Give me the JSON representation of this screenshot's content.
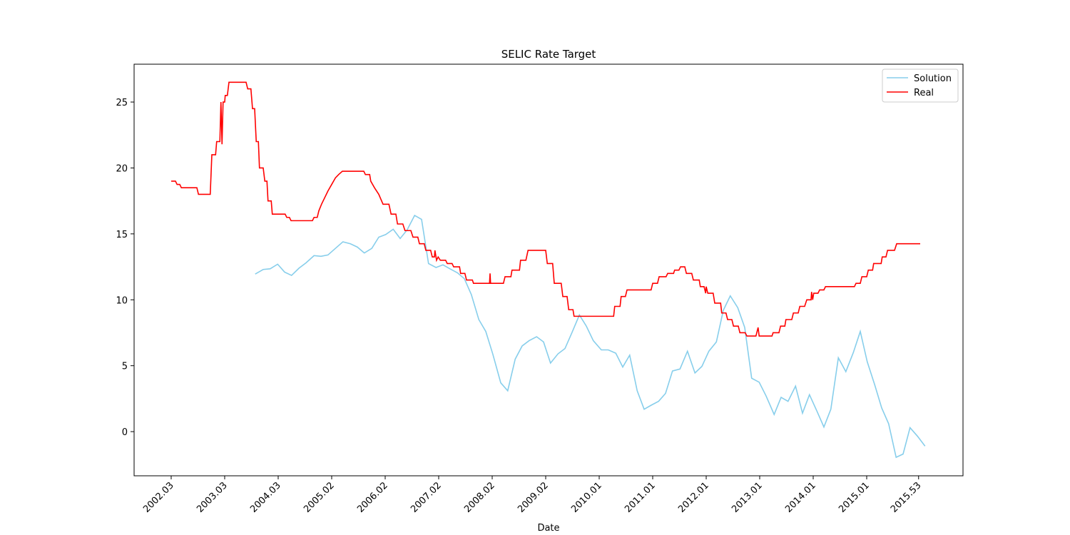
{
  "chart_data": {
    "type": "line",
    "title": "SELIC Rate Target",
    "x_label": "Date",
    "xlim": [
      2001.307,
      2016.8
    ],
    "ylim": [
      -3.35,
      27.87
    ],
    "xticks": [
      {
        "value": 2002,
        "label": "2002.03"
      },
      {
        "value": 2003,
        "label": "2003.03"
      },
      {
        "value": 2004,
        "label": "2004.03"
      },
      {
        "value": 2005,
        "label": "2005.02"
      },
      {
        "value": 2006,
        "label": "2006.02"
      },
      {
        "value": 2007,
        "label": "2007.02"
      },
      {
        "value": 2008,
        "label": "2008.02"
      },
      {
        "value": 2009,
        "label": "2009.02"
      },
      {
        "value": 2010,
        "label": "2010.01"
      },
      {
        "value": 2011,
        "label": "2011.01"
      },
      {
        "value": 2012,
        "label": "2012.01"
      },
      {
        "value": 2013,
        "label": "2013.01"
      },
      {
        "value": 2014,
        "label": "2014.01"
      },
      {
        "value": 2015,
        "label": "2015.01"
      },
      {
        "value": 2015.97,
        "label": "2015.53"
      }
    ],
    "yticks": [
      0,
      5,
      10,
      15,
      20,
      25
    ],
    "grid": false,
    "legend": "upper right",
    "series": [
      {
        "name": "Solution",
        "color": "#87ceeb",
        "x": [
          2003.57,
          2003.72,
          2003.85,
          2003.99,
          2004.12,
          2004.25,
          2004.39,
          2004.52,
          2004.67,
          2004.8,
          2004.93,
          2005.07,
          2005.21,
          2005.35,
          2005.48,
          2005.61,
          2005.75,
          2005.88,
          2006.01,
          2006.15,
          2006.28,
          2006.41,
          2006.55,
          2006.68,
          2006.81,
          2006.95,
          2007.08,
          2007.21,
          2007.35,
          2007.48,
          2007.61,
          2007.75,
          2007.88,
          2008.01,
          2008.16,
          2008.29,
          2008.43,
          2008.56,
          2008.69,
          2008.83,
          2008.96,
          2009.09,
          2009.23,
          2009.36,
          2009.49,
          2009.63,
          2009.76,
          2009.89,
          2010.04,
          2010.17,
          2010.31,
          2010.44,
          2010.57,
          2010.71,
          2010.84,
          2010.97,
          2011.11,
          2011.24,
          2011.37,
          2011.51,
          2011.65,
          2011.79,
          2011.92,
          2012.05,
          2012.19,
          2012.32,
          2012.45,
          2012.59,
          2012.72,
          2012.85,
          2012.99,
          2013.12,
          2013.27,
          2013.4,
          2013.53,
          2013.67,
          2013.8,
          2013.93,
          2014.07,
          2014.2,
          2014.33,
          2014.47,
          2014.61,
          2014.75,
          2014.88,
          2015.01,
          2015.15,
          2015.28,
          2015.41,
          2015.55,
          2015.68,
          2015.81,
          2015.95,
          2016.09
        ],
        "values": [
          11.95,
          12.3,
          12.35,
          12.7,
          12.1,
          11.85,
          12.4,
          12.8,
          13.35,
          13.3,
          13.4,
          13.9,
          14.4,
          14.25,
          14.0,
          13.55,
          13.9,
          14.75,
          14.95,
          15.35,
          14.65,
          15.3,
          16.4,
          16.1,
          12.75,
          12.45,
          12.65,
          12.35,
          12.05,
          11.6,
          10.4,
          8.5,
          7.6,
          5.9,
          3.7,
          3.1,
          5.5,
          6.5,
          6.9,
          7.2,
          6.8,
          5.2,
          5.9,
          6.3,
          7.5,
          8.85,
          8.0,
          6.9,
          6.2,
          6.2,
          5.95,
          4.9,
          5.8,
          3.1,
          1.7,
          2.0,
          2.3,
          2.9,
          4.6,
          4.75,
          6.1,
          4.45,
          4.95,
          6.1,
          6.8,
          9.2,
          10.3,
          9.4,
          7.9,
          4.05,
          3.75,
          2.7,
          1.3,
          2.6,
          2.3,
          3.45,
          1.4,
          2.8,
          1.55,
          0.35,
          1.7,
          5.6,
          4.55,
          6.0,
          7.6,
          5.3,
          3.55,
          1.8,
          0.6,
          -1.95,
          -1.7,
          0.3,
          -0.35,
          -1.1
        ]
      },
      {
        "name": "Real",
        "color": "#ff0000",
        "x": [
          2002.0,
          2002.08,
          2002.11,
          2002.16,
          2002.19,
          2002.48,
          2002.51,
          2002.73,
          2002.76,
          2002.83,
          2002.85,
          2002.91,
          2002.93,
          2002.95,
          2002.97,
          2003.0,
          2003.01,
          2003.05,
          2003.08,
          2003.4,
          2003.43,
          2003.49,
          2003.52,
          2003.56,
          2003.59,
          2003.63,
          2003.65,
          2003.72,
          2003.75,
          2003.79,
          2003.81,
          2003.87,
          2003.89,
          2004.13,
          2004.16,
          2004.21,
          2004.24,
          2004.64,
          2004.67,
          2004.73,
          2004.76,
          2004.81,
          2004.87,
          2004.93,
          2005.0,
          2005.07,
          2005.13,
          2005.2,
          2005.6,
          2005.63,
          2005.71,
          2005.73,
          2005.8,
          2005.88,
          2005.96,
          2006.07,
          2006.11,
          2006.2,
          2006.23,
          2006.33,
          2006.37,
          2006.48,
          2006.52,
          2006.61,
          2006.64,
          2006.73,
          2006.76,
          2006.85,
          2006.88,
          2006.92,
          2006.93,
          2006.96,
          2006.99,
          2007.03,
          2007.13,
          2007.16,
          2007.25,
          2007.28,
          2007.39,
          2007.41,
          2007.49,
          2007.52,
          2007.63,
          2007.65,
          2007.95,
          2007.96,
          2007.97,
          2008.21,
          2008.24,
          2008.35,
          2008.37,
          2008.51,
          2008.53,
          2008.63,
          2008.67,
          2009.0,
          2009.03,
          2009.13,
          2009.16,
          2009.29,
          2009.32,
          2009.4,
          2009.43,
          2009.51,
          2009.53,
          2010.27,
          2010.29,
          2010.39,
          2010.41,
          2010.49,
          2010.52,
          2010.97,
          2011.0,
          2011.09,
          2011.12,
          2011.25,
          2011.28,
          2011.39,
          2011.41,
          2011.49,
          2011.52,
          2011.6,
          2011.63,
          2011.73,
          2011.76,
          2011.87,
          2011.89,
          2011.96,
          2011.99,
          2012.0,
          2012.03,
          2012.13,
          2012.16,
          2012.27,
          2012.29,
          2012.37,
          2012.4,
          2012.48,
          2012.51,
          2012.6,
          2012.63,
          2012.73,
          2012.76,
          2012.93,
          2012.97,
          2012.99,
          2013.23,
          2013.25,
          2013.36,
          2013.39,
          2013.47,
          2013.49,
          2013.6,
          2013.63,
          2013.72,
          2013.75,
          2013.84,
          2013.88,
          2013.96,
          2013.97,
          2013.99,
          2014.01,
          2014.09,
          2014.12,
          2014.2,
          2014.23,
          2014.77,
          2014.8,
          2014.88,
          2014.91,
          2015.0,
          2015.03,
          2015.11,
          2015.13,
          2015.27,
          2015.29,
          2015.36,
          2015.39,
          2015.52,
          2015.56,
          2016.0
        ],
        "values": [
          19.0,
          19.0,
          18.75,
          18.75,
          18.5,
          18.5,
          18.0,
          18.0,
          21.0,
          21.0,
          22.0,
          22.0,
          25.0,
          21.8,
          25.0,
          25.0,
          25.5,
          25.5,
          26.5,
          26.5,
          26.0,
          26.0,
          24.5,
          24.5,
          22.0,
          22.0,
          20.0,
          20.0,
          19.0,
          19.0,
          17.5,
          17.5,
          16.5,
          16.5,
          16.25,
          16.25,
          16.0,
          16.0,
          16.25,
          16.25,
          16.75,
          17.25,
          17.75,
          18.25,
          18.75,
          19.25,
          19.5,
          19.75,
          19.75,
          19.5,
          19.5,
          19.0,
          18.5,
          18.0,
          17.25,
          17.25,
          16.5,
          16.5,
          15.75,
          15.75,
          15.25,
          15.25,
          14.75,
          14.75,
          14.25,
          14.25,
          13.75,
          13.75,
          13.25,
          13.25,
          13.75,
          13.0,
          13.25,
          13.0,
          13.0,
          12.75,
          12.75,
          12.5,
          12.5,
          12.0,
          12.0,
          11.5,
          11.5,
          11.25,
          11.25,
          12.0,
          11.25,
          11.25,
          11.75,
          11.75,
          12.25,
          12.25,
          13.0,
          13.0,
          13.75,
          13.75,
          12.75,
          12.75,
          11.25,
          11.25,
          10.25,
          10.25,
          9.25,
          9.25,
          8.75,
          8.75,
          9.5,
          9.5,
          10.25,
          10.25,
          10.75,
          10.75,
          11.25,
          11.25,
          11.75,
          11.75,
          12.0,
          12.0,
          12.25,
          12.25,
          12.5,
          12.5,
          12.0,
          12.0,
          11.5,
          11.5,
          11.0,
          11.0,
          10.5,
          11.0,
          10.5,
          10.5,
          9.75,
          9.75,
          9.0,
          9.0,
          8.5,
          8.5,
          8.0,
          8.0,
          7.5,
          7.5,
          7.25,
          7.25,
          7.9,
          7.25,
          7.25,
          7.5,
          7.5,
          8.0,
          8.0,
          8.5,
          8.5,
          9.0,
          9.0,
          9.5,
          9.5,
          10.0,
          10.0,
          10.6,
          10.0,
          10.5,
          10.5,
          10.75,
          10.75,
          11.0,
          11.0,
          11.25,
          11.25,
          11.75,
          11.75,
          12.25,
          12.25,
          12.75,
          12.75,
          13.25,
          13.25,
          13.75,
          13.75,
          14.25,
          14.25
        ]
      }
    ]
  }
}
